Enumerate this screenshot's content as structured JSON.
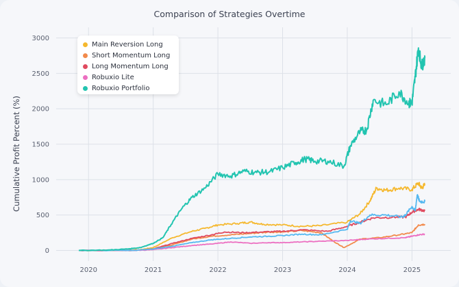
{
  "chart_data": {
    "type": "line",
    "title": "Comparison of Strategies Overtime",
    "xlabel": "",
    "ylabel": "Cumulative Profit Percent (%)",
    "xlim": [
      2019.5,
      2025.6
    ],
    "ylim": [
      -150,
      3150
    ],
    "x_ticks": [
      "2020",
      "2021",
      "2022",
      "2023",
      "2024",
      "2025"
    ],
    "y_ticks": [
      "0",
      "500",
      "1000",
      "1500",
      "2000",
      "2500",
      "3000"
    ],
    "grid": true,
    "legend_position": "top-left",
    "series": [
      {
        "name": "Main Reversion Long",
        "color": "#f5b82e",
        "points": [
          [
            2019.85,
            0
          ],
          [
            2020.5,
            0
          ],
          [
            2020.8,
            10
          ],
          [
            2021.0,
            40
          ],
          [
            2021.3,
            180
          ],
          [
            2021.6,
            270
          ],
          [
            2021.8,
            310
          ],
          [
            2022.0,
            360
          ],
          [
            2022.3,
            380
          ],
          [
            2022.5,
            400
          ],
          [
            2022.7,
            370
          ],
          [
            2023.0,
            360
          ],
          [
            2023.3,
            340
          ],
          [
            2023.6,
            350
          ],
          [
            2024.0,
            400
          ],
          [
            2024.2,
            520
          ],
          [
            2024.35,
            700
          ],
          [
            2024.45,
            880
          ],
          [
            2024.6,
            850
          ],
          [
            2024.8,
            880
          ],
          [
            2025.0,
            860
          ],
          [
            2025.1,
            950
          ],
          [
            2025.15,
            880
          ],
          [
            2025.2,
            930
          ]
        ]
      },
      {
        "name": "Short Momentum Long",
        "color": "#f28a4b",
        "points": [
          [
            2019.85,
            0
          ],
          [
            2020.7,
            0
          ],
          [
            2021.0,
            20
          ],
          [
            2021.3,
            80
          ],
          [
            2021.6,
            160
          ],
          [
            2021.9,
            200
          ],
          [
            2022.2,
            220
          ],
          [
            2022.5,
            240
          ],
          [
            2022.8,
            260
          ],
          [
            2023.0,
            260
          ],
          [
            2023.3,
            280
          ],
          [
            2023.6,
            250
          ],
          [
            2023.8,
            120
          ],
          [
            2023.95,
            40
          ],
          [
            2024.2,
            160
          ],
          [
            2024.5,
            180
          ],
          [
            2024.8,
            220
          ],
          [
            2025.0,
            250
          ],
          [
            2025.1,
            360
          ],
          [
            2025.2,
            370
          ]
        ]
      },
      {
        "name": "Long Momentum Long",
        "color": "#e04a5f",
        "points": [
          [
            2019.85,
            0
          ],
          [
            2020.7,
            0
          ],
          [
            2021.0,
            20
          ],
          [
            2021.3,
            100
          ],
          [
            2021.6,
            170
          ],
          [
            2021.9,
            220
          ],
          [
            2022.1,
            260
          ],
          [
            2022.4,
            250
          ],
          [
            2022.7,
            260
          ],
          [
            2023.0,
            270
          ],
          [
            2023.3,
            290
          ],
          [
            2023.7,
            270
          ],
          [
            2024.0,
            340
          ],
          [
            2024.2,
            400
          ],
          [
            2024.4,
            460
          ],
          [
            2024.7,
            470
          ],
          [
            2024.9,
            470
          ],
          [
            2025.0,
            540
          ],
          [
            2025.1,
            580
          ],
          [
            2025.2,
            560
          ]
        ]
      },
      {
        "name": "Robuxio Lite",
        "color": "#ec6fc1",
        "points": [
          [
            2019.85,
            0
          ],
          [
            2020.7,
            0
          ],
          [
            2021.0,
            10
          ],
          [
            2021.3,
            40
          ],
          [
            2021.6,
            70
          ],
          [
            2021.9,
            90
          ],
          [
            2022.2,
            120
          ],
          [
            2022.5,
            100
          ],
          [
            2022.8,
            110
          ],
          [
            2023.0,
            110
          ],
          [
            2023.3,
            120
          ],
          [
            2023.6,
            130
          ],
          [
            2024.0,
            140
          ],
          [
            2024.3,
            160
          ],
          [
            2024.6,
            170
          ],
          [
            2024.9,
            180
          ],
          [
            2025.0,
            200
          ],
          [
            2025.1,
            220
          ],
          [
            2025.2,
            230
          ]
        ]
      },
      {
        "name": "",
        "color": "#55b8f0",
        "points": [
          [
            2019.85,
            0
          ],
          [
            2020.7,
            0
          ],
          [
            2021.0,
            20
          ],
          [
            2021.3,
            60
          ],
          [
            2021.6,
            110
          ],
          [
            2021.9,
            150
          ],
          [
            2022.2,
            170
          ],
          [
            2022.5,
            190
          ],
          [
            2022.8,
            200
          ],
          [
            2023.0,
            210
          ],
          [
            2023.3,
            230
          ],
          [
            2023.6,
            220
          ],
          [
            2024.0,
            300
          ],
          [
            2024.05,
            420
          ],
          [
            2024.2,
            380
          ],
          [
            2024.35,
            500
          ],
          [
            2024.6,
            500
          ],
          [
            2024.85,
            470
          ],
          [
            2024.9,
            500
          ],
          [
            2025.0,
            620
          ],
          [
            2025.05,
            560
          ],
          [
            2025.08,
            780
          ],
          [
            2025.12,
            690
          ],
          [
            2025.2,
            690
          ]
        ]
      },
      {
        "name": "Robuxio Portfolio",
        "color": "#22c4b0",
        "points": [
          [
            2019.85,
            0
          ],
          [
            2020.3,
            5
          ],
          [
            2020.6,
            20
          ],
          [
            2020.8,
            40
          ],
          [
            2021.0,
            100
          ],
          [
            2021.15,
            180
          ],
          [
            2021.3,
            400
          ],
          [
            2021.45,
            600
          ],
          [
            2021.6,
            750
          ],
          [
            2021.8,
            880
          ],
          [
            2022.0,
            1080
          ],
          [
            2022.2,
            1050
          ],
          [
            2022.4,
            1120
          ],
          [
            2022.6,
            1100
          ],
          [
            2022.8,
            1110
          ],
          [
            2023.0,
            1170
          ],
          [
            2023.2,
            1240
          ],
          [
            2023.35,
            1290
          ],
          [
            2023.5,
            1260
          ],
          [
            2023.7,
            1260
          ],
          [
            2023.95,
            1190
          ],
          [
            2024.05,
            1480
          ],
          [
            2024.2,
            1680
          ],
          [
            2024.3,
            1700
          ],
          [
            2024.4,
            2120
          ],
          [
            2024.6,
            2060
          ],
          [
            2024.8,
            2240
          ],
          [
            2024.95,
            2080
          ],
          [
            2025.0,
            2080
          ],
          [
            2025.05,
            2450
          ],
          [
            2025.1,
            2860
          ],
          [
            2025.15,
            2600
          ],
          [
            2025.2,
            2720
          ]
        ]
      }
    ]
  }
}
